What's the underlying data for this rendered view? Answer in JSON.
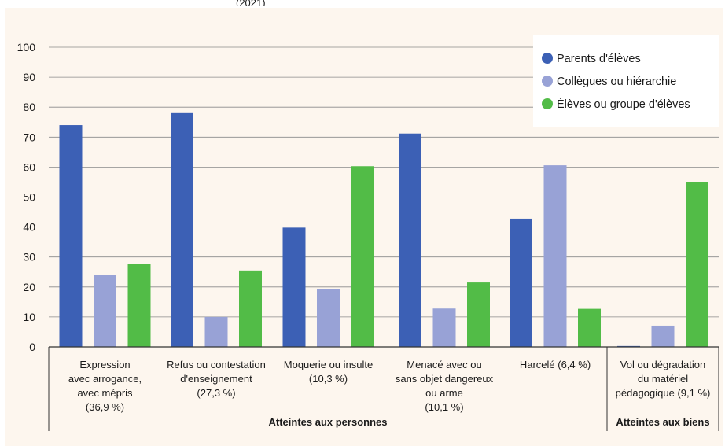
{
  "colors": {
    "background": "#fdf6ee",
    "grid": "#8a8a8a",
    "axis": "#333333",
    "series": [
      "#3c60b5",
      "#98a2d6",
      "#52bc47"
    ]
  },
  "chart_data": {
    "type": "bar",
    "top_text": "(2021)",
    "ylim": [
      0,
      100
    ],
    "yticks": [
      0,
      10,
      20,
      30,
      40,
      50,
      60,
      70,
      80,
      90,
      100
    ],
    "grid": true,
    "legend_position": "top-right",
    "categories": [
      [
        "Expression",
        "avec arrogance,",
        "avec mépris",
        "(36,9 %)"
      ],
      [
        "Refus ou contestation",
        "d'enseignement",
        "(27,3 %)"
      ],
      [
        "Moquerie ou insulte",
        "(10,3 %)"
      ],
      [
        "Menacé avec ou",
        "sans objet dangereux",
        "ou arme",
        "(10,1 %)"
      ],
      [
        "Harcelé (6,4 %)"
      ],
      [
        "Vol ou dégradation",
        "du matériel",
        "pédagogique (9,1 %)"
      ]
    ],
    "groups": [
      {
        "label": "Atteintes aux personnes",
        "categories": [
          0,
          1,
          2,
          3,
          4
        ]
      },
      {
        "label": "Atteintes aux biens",
        "categories": [
          5
        ]
      }
    ],
    "series": [
      {
        "name": "Parents d'élèves",
        "values": [
          74,
          78,
          39.8,
          71.2,
          42.8,
          0.3
        ]
      },
      {
        "name": "Collègues ou hiérarchie",
        "values": [
          24.1,
          10,
          19.3,
          12.8,
          60.6,
          7.1
        ]
      },
      {
        "name": "Élèves ou groupe d'élèves",
        "values": [
          27.8,
          25.5,
          60.3,
          21.5,
          12.7,
          54.9
        ]
      }
    ]
  }
}
